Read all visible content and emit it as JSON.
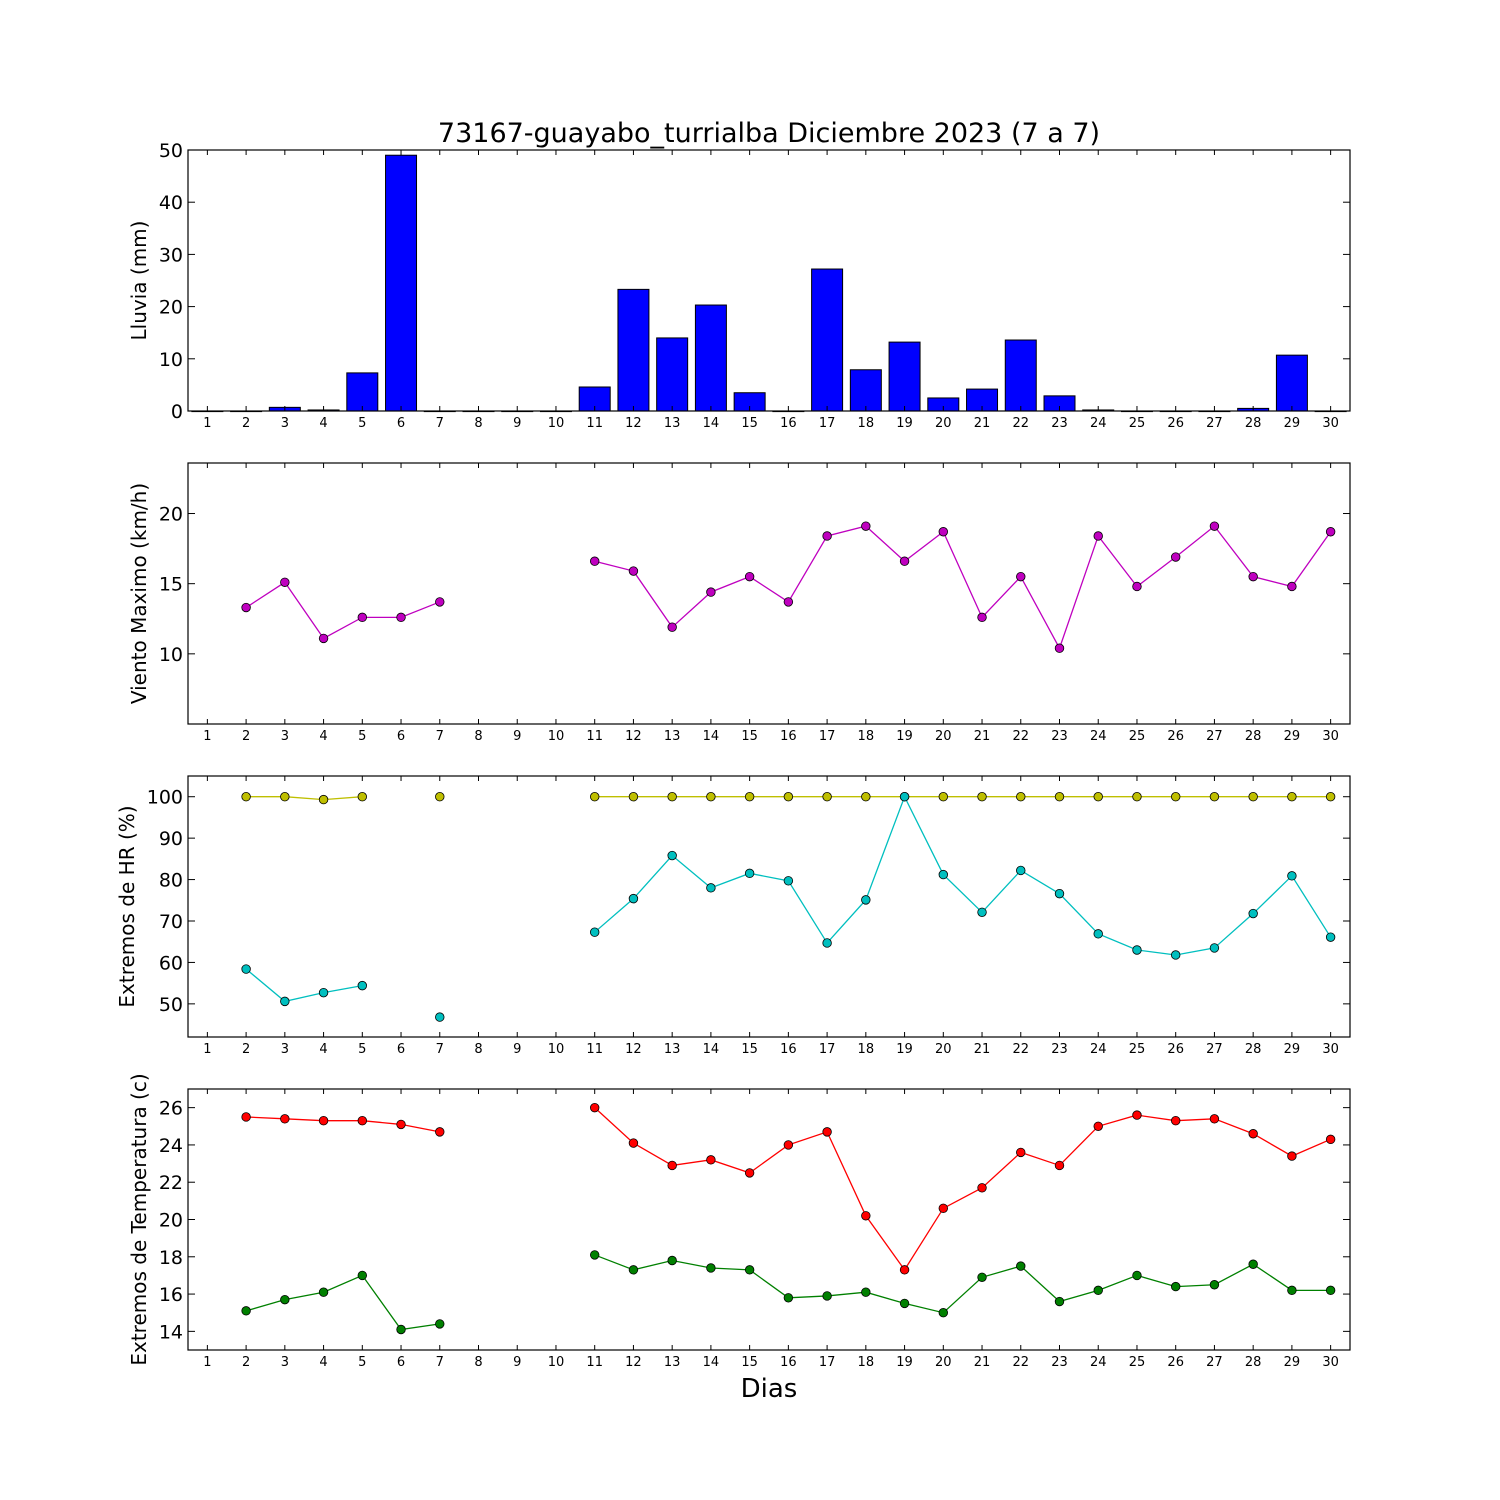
{
  "chart_data": {
    "title": "73167-guayabo_turrialba Diciembre 2023  (7 a 7)",
    "xlabel": "Dias",
    "days": [
      1,
      2,
      3,
      4,
      5,
      6,
      7,
      8,
      9,
      10,
      11,
      12,
      13,
      14,
      15,
      16,
      17,
      18,
      19,
      20,
      21,
      22,
      23,
      24,
      25,
      26,
      27,
      28,
      29,
      30
    ],
    "panels": [
      {
        "type": "bar",
        "ylabel": "Lluvia (mm)",
        "ylim": [
          0,
          50
        ],
        "yticks": [
          0,
          10,
          20,
          30,
          40,
          50
        ],
        "series": [
          {
            "color": "#0000ff",
            "values": [
              0,
              0,
              0.7,
              0.2,
              7.3,
              49.0,
              0,
              0,
              0,
              0,
              4.6,
              23.3,
              14.0,
              20.3,
              3.5,
              0,
              27.2,
              7.9,
              13.2,
              2.5,
              4.2,
              13.6,
              2.9,
              0.2,
              0,
              0,
              0,
              0.5,
              10.7,
              0
            ]
          }
        ]
      },
      {
        "type": "line",
        "ylabel": "Viento Maximo (km/h)",
        "ylim": [
          5,
          23.6
        ],
        "yticks": [
          10,
          15,
          20
        ],
        "series": [
          {
            "color": "#bf00bf",
            "values": [
              null,
              13.3,
              15.1,
              11.1,
              12.6,
              12.6,
              13.7,
              null,
              null,
              null,
              16.6,
              15.9,
              11.9,
              14.4,
              15.5,
              13.7,
              18.4,
              19.1,
              16.6,
              18.7,
              12.6,
              15.5,
              10.4,
              18.4,
              14.8,
              16.9,
              19.1,
              15.5,
              14.8,
              18.7
            ]
          }
        ]
      },
      {
        "type": "line",
        "ylabel": "Extremos de HR (%)",
        "ylim": [
          42,
          105
        ],
        "yticks": [
          50,
          60,
          70,
          80,
          90,
          100
        ],
        "series": [
          {
            "color": "#bfbf00",
            "values": [
              null,
              100,
              100,
              99.3,
              100,
              null,
              100,
              null,
              null,
              null,
              100,
              100,
              100,
              100,
              100,
              100,
              100,
              100,
              100,
              100,
              100,
              100,
              100,
              100,
              100,
              100,
              100,
              100,
              100,
              100
            ]
          },
          {
            "color": "#00bfbf",
            "values": [
              null,
              58.4,
              50.6,
              52.7,
              54.4,
              null,
              46.8,
              null,
              null,
              null,
              67.3,
              75.4,
              85.8,
              78.0,
              81.5,
              79.7,
              64.7,
              75.1,
              100,
              81.2,
              72.1,
              82.2,
              76.6,
              66.9,
              63.0,
              61.8,
              63.5,
              71.8,
              80.9,
              66.1
            ]
          }
        ]
      },
      {
        "type": "line",
        "ylabel": "Extremos de Temperatura (c)",
        "ylim": [
          13,
          27
        ],
        "yticks": [
          14,
          16,
          18,
          20,
          22,
          24,
          26
        ],
        "series": [
          {
            "color": "#ff0000",
            "values": [
              null,
              25.5,
              25.4,
              25.3,
              25.3,
              25.1,
              24.7,
              null,
              null,
              null,
              26.0,
              24.1,
              22.9,
              23.2,
              22.5,
              24.0,
              24.7,
              20.2,
              17.3,
              20.6,
              21.7,
              23.6,
              22.9,
              25.0,
              25.6,
              25.3,
              25.4,
              24.6,
              23.4,
              24.3
            ]
          },
          {
            "color": "#008000",
            "values": [
              null,
              15.1,
              15.7,
              16.1,
              17.0,
              14.1,
              14.4,
              null,
              null,
              null,
              18.1,
              17.3,
              17.8,
              17.4,
              17.3,
              15.8,
              15.9,
              16.1,
              15.5,
              15.0,
              16.9,
              17.5,
              15.6,
              16.2,
              17.0,
              16.4,
              16.5,
              17.6,
              16.2,
              16.2
            ]
          }
        ]
      }
    ]
  }
}
